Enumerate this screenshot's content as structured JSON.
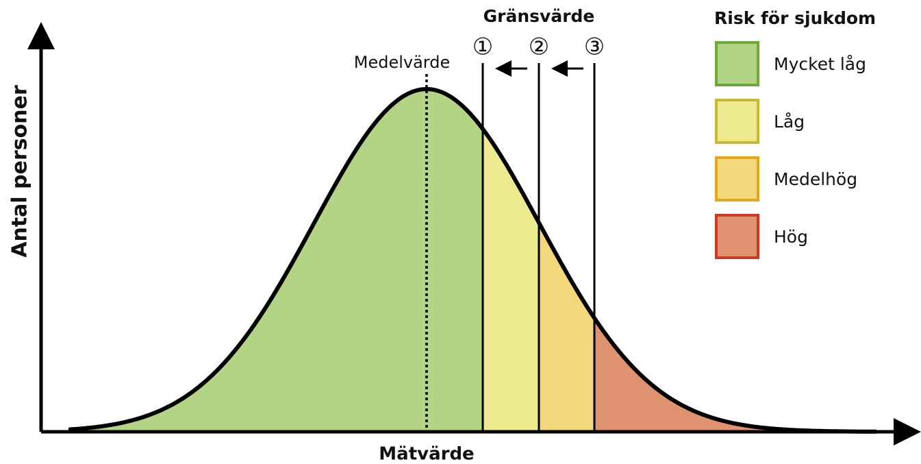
{
  "axes": {
    "x_label": "Mätvärde",
    "y_label": "Antal personer"
  },
  "annotations": {
    "mean": "Medelvärde",
    "threshold_title": "Gränsvärde",
    "thresholds": [
      "①",
      "②",
      "③"
    ]
  },
  "legend": {
    "title": "Risk för sjukdom",
    "items": [
      "Mycket låg",
      "Låg",
      "Medelhög",
      "Hög"
    ]
  }
}
